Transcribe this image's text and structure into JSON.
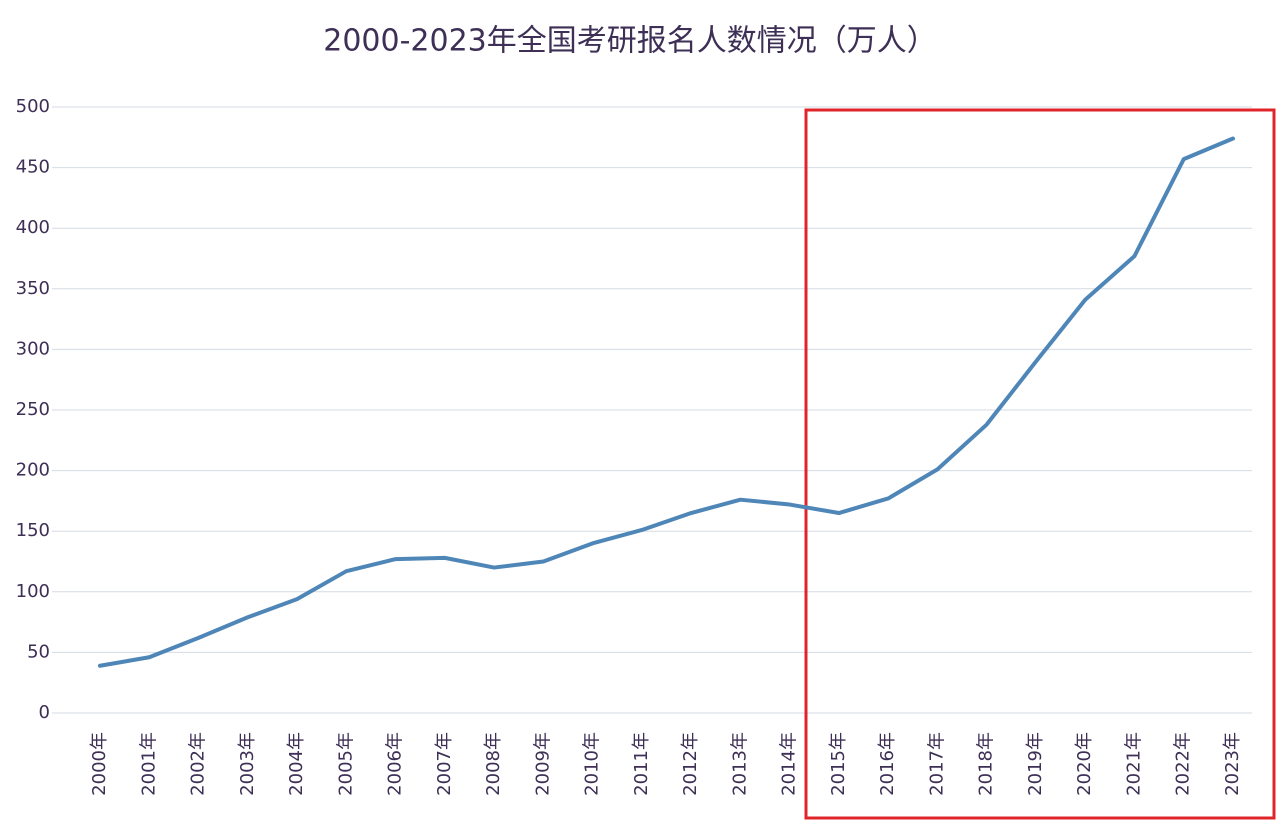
{
  "chart_data": {
    "type": "line",
    "title": "2000-2023年全国考研报名人数情况（万人）",
    "categories": [
      "2000年",
      "2001年",
      "2002年",
      "2003年",
      "2004年",
      "2005年",
      "2006年",
      "2007年",
      "2008年",
      "2009年",
      "2010年",
      "2011年",
      "2012年",
      "2013年",
      "2014年",
      "2015年",
      "2016年",
      "2017年",
      "2018年",
      "2019年",
      "2020年",
      "2021年",
      "2022年",
      "2023年"
    ],
    "series": [
      {
        "name": "报名人数",
        "color": "#4f86b8",
        "values": [
          39,
          46,
          62,
          79,
          94,
          117,
          127,
          128,
          120,
          125,
          140,
          151,
          165,
          176,
          172,
          165,
          177,
          201,
          238,
          290,
          341,
          377,
          457,
          474
        ]
      }
    ],
    "ylim": [
      0,
      500
    ],
    "yticks": [
      0,
      50,
      100,
      150,
      200,
      250,
      300,
      350,
      400,
      450,
      500
    ],
    "grid": true
  }
}
